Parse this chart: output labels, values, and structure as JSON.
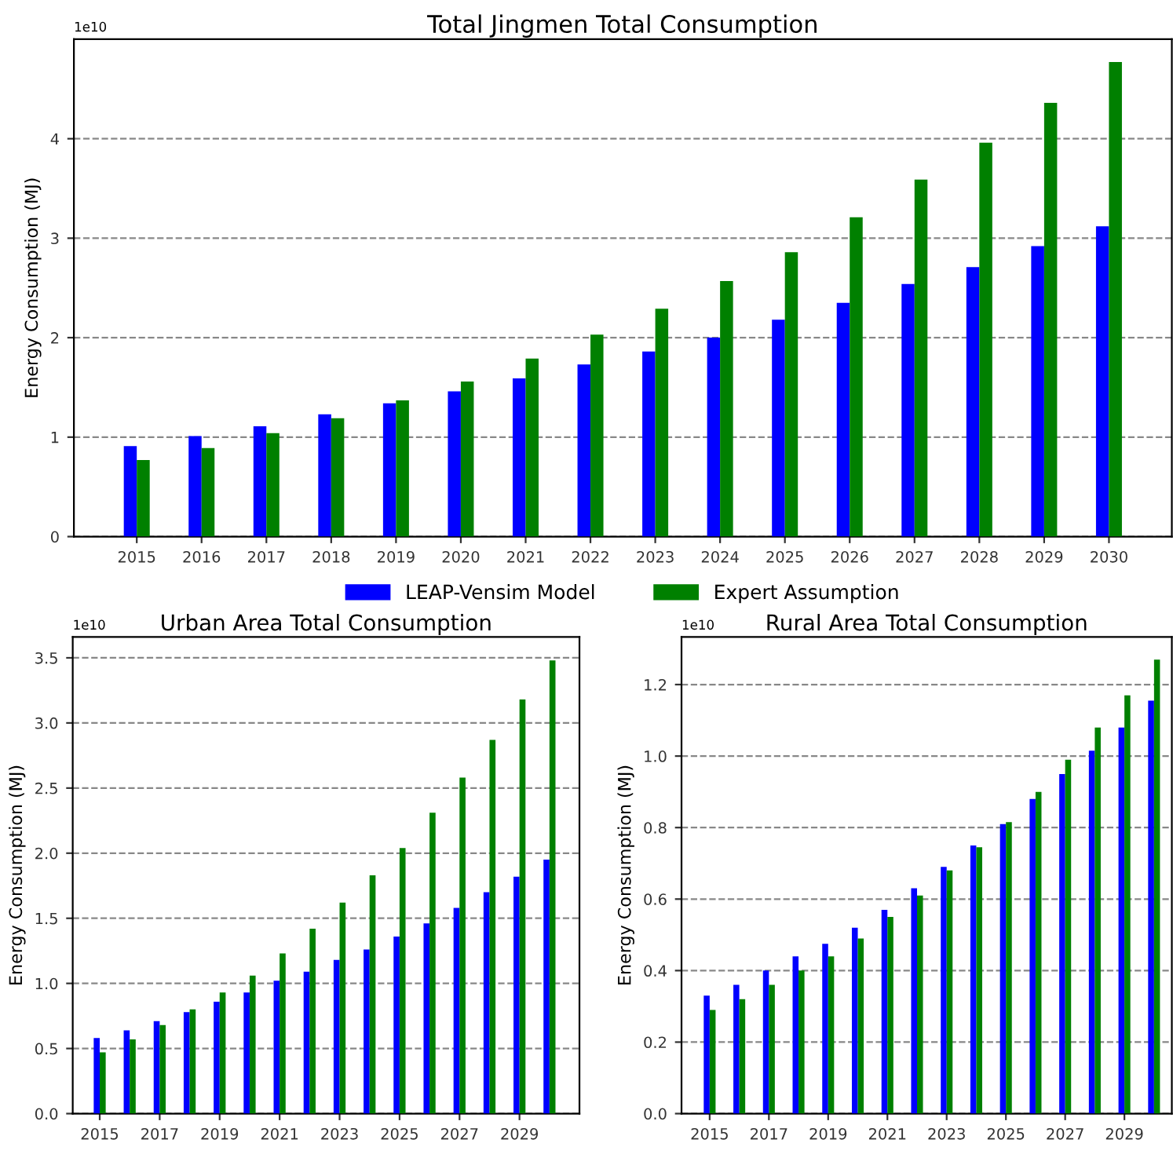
{
  "chart_data": [
    {
      "type": "bar",
      "title": "Total Jingmen Total Consumption",
      "ylabel": "Energy Consumption (MJ)",
      "annotations": [
        "1e10"
      ],
      "categories": [
        "2015",
        "2016",
        "2017",
        "2018",
        "2019",
        "2020",
        "2021",
        "2022",
        "2023",
        "2024",
        "2025",
        "2026",
        "2027",
        "2028",
        "2029",
        "2030"
      ],
      "series": [
        {
          "name": "LEAP-Vensim Model",
          "color": "#0000ff",
          "values": [
            0.91,
            1.01,
            1.11,
            1.23,
            1.34,
            1.46,
            1.59,
            1.73,
            1.86,
            2.0,
            2.18,
            2.35,
            2.54,
            2.71,
            2.92,
            3.12
          ]
        },
        {
          "name": "Expert Assumption",
          "color": "#008000",
          "values": [
            0.77,
            0.89,
            1.04,
            1.19,
            1.37,
            1.56,
            1.79,
            2.03,
            2.29,
            2.57,
            2.86,
            3.21,
            3.59,
            3.96,
            4.36,
            4.77
          ]
        }
      ],
      "ylim": [
        0,
        5
      ],
      "yticks": [
        0,
        1,
        2,
        3,
        4
      ],
      "grid": "y",
      "legend": "bottom"
    },
    {
      "type": "bar",
      "title": "Urban Area Total Consumption",
      "ylabel": "Energy Consumption (MJ)",
      "annotations": [
        "1e10"
      ],
      "x": [
        2015,
        2016,
        2017,
        2018,
        2019,
        2020,
        2021,
        2022,
        2023,
        2024,
        2025,
        2026,
        2027,
        2028,
        2029,
        2030
      ],
      "series": [
        {
          "color": "#0000ff",
          "values": [
            0.58,
            0.64,
            0.71,
            0.78,
            0.86,
            0.93,
            1.02,
            1.09,
            1.18,
            1.26,
            1.36,
            1.46,
            1.58,
            1.7,
            1.82,
            1.95
          ]
        },
        {
          "color": "#008000",
          "values": [
            0.47,
            0.57,
            0.68,
            0.8,
            0.93,
            1.06,
            1.23,
            1.42,
            1.62,
            1.83,
            2.04,
            2.31,
            2.58,
            2.87,
            3.18,
            3.48
          ]
        }
      ],
      "xlim": [
        2014.1,
        2031.0
      ],
      "xticks": [
        2015,
        2017,
        2019,
        2021,
        2023,
        2025,
        2027,
        2029
      ],
      "ylim": [
        0,
        3.66
      ],
      "yticks": [
        {
          "value": 0,
          "label": "0.0"
        },
        0.5,
        {
          "value": 1,
          "label": "1.0"
        },
        1.5,
        {
          "value": 2,
          "label": "2.0"
        },
        2.5,
        {
          "value": 3,
          "label": "3.0"
        },
        3.5
      ],
      "grid": "y"
    },
    {
      "type": "bar",
      "title": "Rural Area Total Consumption",
      "ylabel": "Energy Consumption (MJ)",
      "annotations": [
        "1e10"
      ],
      "x": [
        2015,
        2016,
        2017,
        2018,
        2019,
        2020,
        2021,
        2022,
        2023,
        2024,
        2025,
        2026,
        2027,
        2028,
        2029,
        2030
      ],
      "series": [
        {
          "color": "#0000ff",
          "values": [
            0.33,
            0.36,
            0.4,
            0.44,
            0.475,
            0.52,
            0.57,
            0.63,
            0.69,
            0.75,
            0.81,
            0.88,
            0.95,
            1.015,
            1.08,
            1.155
          ]
        },
        {
          "color": "#008000",
          "values": [
            0.29,
            0.32,
            0.36,
            0.4,
            0.44,
            0.49,
            0.55,
            0.61,
            0.68,
            0.745,
            0.815,
            0.9,
            0.99,
            1.08,
            1.17,
            1.27
          ]
        }
      ],
      "xlim": [
        2014.05,
        2030.6
      ],
      "xticks": [
        2015,
        2017,
        2019,
        2021,
        2023,
        2025,
        2027,
        2029
      ],
      "ylim": [
        0,
        1.333
      ],
      "yticks": [
        {
          "value": 0,
          "label": "0.0"
        },
        0.2,
        0.4,
        0.6,
        0.8,
        {
          "value": 1,
          "label": "1.0"
        },
        1.2
      ],
      "grid": "y"
    }
  ]
}
